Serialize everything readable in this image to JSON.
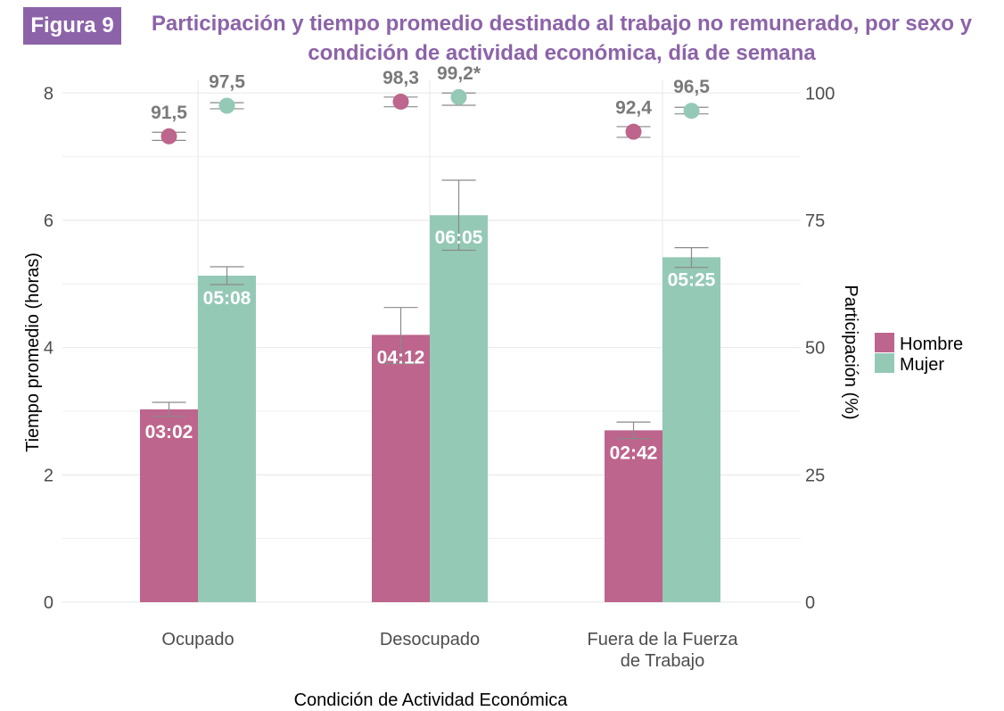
{
  "figure": {
    "badge": "Figura 9",
    "title_line1": "Participación y tiempo promedio destinado al trabajo no remunerado, por sexo y",
    "title_line2": "condición de actividad económica, día de semana"
  },
  "chart_data": {
    "type": "bar",
    "title": "Participación y tiempo promedio destinado al trabajo no remunerado, por sexo y condición de actividad económica, día de semana",
    "xlabel": "Condición de Actividad Económica",
    "ylabel": "Tiempo promedio (horas)",
    "y2label": "Participación (%)",
    "ylim": [
      0,
      8.2
    ],
    "y2lim": [
      0,
      102.5
    ],
    "yticks": [
      "0",
      "2",
      "4",
      "6",
      "8"
    ],
    "y2ticks": [
      "0",
      "25",
      "50",
      "75",
      "100"
    ],
    "categories": [
      {
        "lines": [
          "Ocupado"
        ]
      },
      {
        "lines": [
          "Desocupado"
        ]
      },
      {
        "lines": [
          "Fuera de la Fuerza",
          "de Trabajo"
        ]
      }
    ],
    "legend": {
      "placement": "right",
      "entries": [
        "Hombre",
        "Mujer"
      ]
    },
    "colors": {
      "Hombre": "#bd658c",
      "Mujer": "#94c9b6",
      "errorbar": "#8a8a8a",
      "grid": "#ebebeb"
    },
    "series": [
      {
        "name": "Hombre",
        "hours": [
          3.03,
          4.2,
          2.7
        ],
        "hours_err_low": [
          2.92,
          3.75,
          2.57
        ],
        "hours_err_high": [
          3.14,
          4.63,
          2.83
        ],
        "hours_labels": [
          "03:02",
          "04:12",
          "02:42"
        ],
        "participation": [
          91.5,
          98.3,
          92.4
        ],
        "participation_err_low": [
          90.7,
          97.3,
          91.3
        ],
        "participation_err_high": [
          92.3,
          99.2,
          93.4
        ],
        "participation_labels": [
          "91,5",
          "98,3",
          "92,4"
        ]
      },
      {
        "name": "Mujer",
        "hours": [
          5.13,
          6.08,
          5.42
        ],
        "hours_err_low": [
          4.99,
          5.53,
          5.26
        ],
        "hours_err_high": [
          5.27,
          6.63,
          5.57
        ],
        "hours_labels": [
          "05:08",
          "06:05",
          "05:25"
        ],
        "participation": [
          97.5,
          99.2,
          96.5
        ],
        "participation_err_low": [
          96.9,
          97.6,
          95.9
        ],
        "participation_err_high": [
          98.1,
          100.0,
          97.2
        ],
        "participation_labels": [
          "97,5",
          "99,2*",
          "96,5"
        ]
      }
    ]
  }
}
